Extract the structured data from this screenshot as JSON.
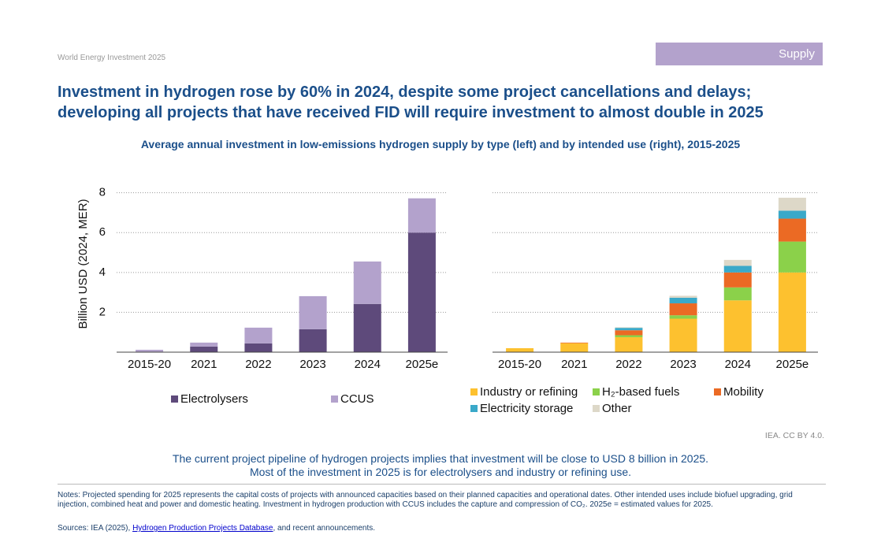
{
  "header": {
    "report": "World Energy Investment 2025",
    "section": "Supply"
  },
  "title": [
    "Investment in hydrogen rose by 60% in 2024, despite some project cancellations and delays;",
    "developing all projects that have received FID will require investment to almost double in 2025"
  ],
  "subtitle": "Average annual investment in low-emissions hydrogen supply by type (left) and by intended use (right), 2015-2025",
  "chart_data": [
    {
      "type": "bar",
      "stacked": true,
      "ylabel": "Billion USD (2024, MER)",
      "categories": [
        "2015-20",
        "2021",
        "2022",
        "2023",
        "2024",
        "2025e"
      ],
      "series": [
        {
          "name": "Electrolysers",
          "color": "#5e4a7b",
          "values": [
            0.03,
            0.28,
            0.44,
            1.15,
            2.42,
            6.0
          ]
        },
        {
          "name": "CCUS",
          "color": "#b3a2cc",
          "values": [
            0.09,
            0.2,
            0.79,
            1.66,
            2.13,
            1.72
          ]
        }
      ],
      "ylim": [
        0,
        8.5
      ],
      "yticks": [
        2,
        4,
        6,
        8
      ],
      "grid": true,
      "show_tick_labels": true
    },
    {
      "type": "bar",
      "stacked": true,
      "categories": [
        "2015-20",
        "2021",
        "2022",
        "2023",
        "2024",
        "2025e"
      ],
      "series": [
        {
          "name": "Industry or refining",
          "color": "#fdc12f",
          "values": [
            0.2,
            0.45,
            0.75,
            1.68,
            2.6,
            4.0
          ]
        },
        {
          "name": "H₂-based fuels",
          "color": "#8bd14a",
          "values": [
            0,
            0,
            0.1,
            0.17,
            0.65,
            1.55
          ]
        },
        {
          "name": "Mobility",
          "color": "#eb6a24",
          "values": [
            0,
            0.03,
            0.25,
            0.6,
            0.75,
            1.15
          ]
        },
        {
          "name": "Electricity storage",
          "color": "#3aa9c9",
          "values": [
            0,
            0,
            0.12,
            0.28,
            0.33,
            0.4
          ]
        },
        {
          "name": "Other",
          "color": "#ddd8c8",
          "values": [
            0,
            0,
            0.03,
            0.1,
            0.3,
            0.65
          ]
        }
      ],
      "ylim": [
        0,
        8.5
      ],
      "yticks": [
        2,
        4,
        6,
        8
      ],
      "grid": true,
      "show_tick_labels": false
    }
  ],
  "credit": "IEA. CC BY 4.0.",
  "caption": [
    "The current project pipeline of hydrogen projects implies that investment will be close to USD 8 billion in 2025.",
    "Most of the investment in 2025 is for electrolysers and industry or refining use."
  ],
  "notes": "Notes: Projected spending for 2025 represents the capital costs of projects with announced capacities based on their planned capacities and operational dates. Other intended uses include biofuel upgrading, grid injection, combined heat and power and domestic heating. Investment in hydrogen production with CCUS includes the capture and compression of CO₂. 2025e = estimated values for 2025.",
  "sources": {
    "prefix": "Sources: IEA (2025), ",
    "link": "Hydrogen Production Projects Database",
    "suffix": ", and recent announcements."
  }
}
